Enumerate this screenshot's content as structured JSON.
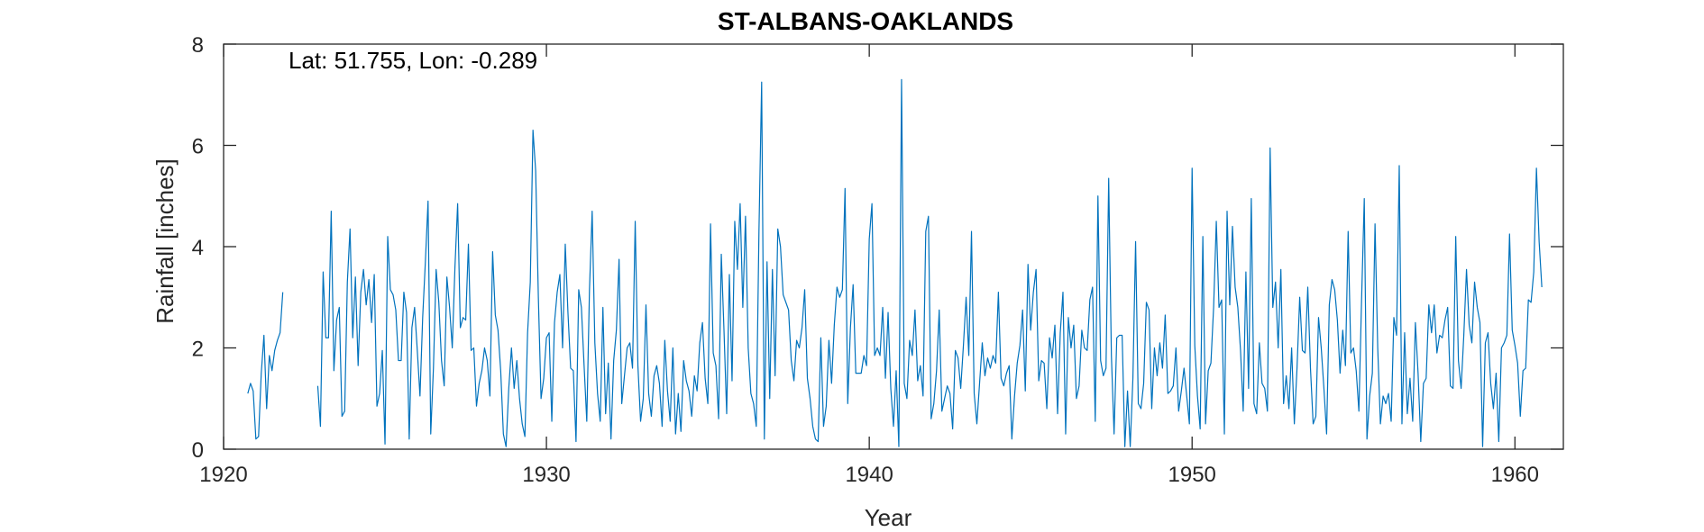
{
  "chart_data": {
    "type": "line",
    "title": "ST-ALBANS-OAKLANDS",
    "annotation": "Lat: 51.755, Lon: -0.289",
    "xlabel": "Year",
    "ylabel": "Rainfall [inches]",
    "xlim": [
      1920,
      1961.5
    ],
    "ylim": [
      0,
      8
    ],
    "xticks": [
      1920,
      1930,
      1940,
      1950,
      1960
    ],
    "yticks": [
      0,
      2,
      4,
      6,
      8
    ],
    "grid": false,
    "line_color": "#0072BD",
    "series": [
      {
        "segments": [
          {
            "start": [
              1920,
              10
            ],
            "values": [
              1.1,
              1.3,
              1.15,
              0.2,
              0.25,
              1.5,
              2.25,
              0.8,
              1.85,
              1.55,
              1.95,
              2.15,
              2.3,
              3.1
            ]
          },
          {
            "start": [
              1922,
              12
            ],
            "values": [
              1.25,
              0.45,
              3.5,
              2.2,
              2.2,
              4.7,
              1.55,
              2.55,
              2.8,
              0.65,
              0.75,
              3.3,
              4.35,
              2.2,
              3.4,
              1.65,
              3.1,
              3.55,
              2.85,
              3.35,
              2.5,
              3.45,
              0.85,
              1.1,
              1.95,
              0.1,
              4.2,
              3.15,
              3.05,
              2.75,
              1.75,
              1.75,
              3.1,
              2.7,
              0.2,
              2.4,
              2.8,
              1.95,
              1.05,
              2.6,
              3.7,
              4.9,
              0.3,
              1.6,
              3.55,
              2.9,
              1.75,
              1.25,
              3.4,
              2.8,
              2.0,
              3.6,
              4.85,
              2.4,
              2.6,
              2.55,
              4.05,
              1.95,
              2.0,
              0.85,
              1.3,
              1.55,
              2.0,
              1.75,
              1.05,
              3.9,
              2.65,
              2.35,
              1.55,
              0.3,
              0.05,
              1.2,
              2.0,
              1.2,
              1.75,
              1.0,
              0.5,
              0.25,
              2.3,
              3.3,
              6.3,
              5.5,
              3.0,
              1.0,
              1.4,
              2.2,
              2.3,
              0.55,
              2.5,
              3.1,
              3.45,
              2.0,
              4.05,
              2.7,
              1.6,
              1.55,
              0.15,
              3.15,
              2.8,
              1.65,
              0.55,
              3.15,
              4.7,
              2.1,
              1.1,
              0.55,
              2.8,
              0.7,
              1.7,
              0.2,
              1.75,
              2.35,
              3.75,
              0.9,
              1.45,
              2.0,
              2.1,
              1.6,
              4.5,
              1.65,
              0.55,
              1.0,
              2.85,
              1.1,
              0.65,
              1.45,
              1.65,
              1.3,
              0.45,
              2.15,
              1.15,
              0.55,
              2.0,
              0.3,
              1.1,
              0.35,
              1.75,
              1.35,
              1.15,
              0.65,
              1.45,
              1.15,
              2.1,
              2.5,
              1.4,
              0.9,
              4.45,
              1.9,
              1.65,
              0.6,
              3.85,
              2.35,
              0.7,
              3.45,
              1.35,
              4.5,
              3.55,
              4.85,
              2.8,
              4.6,
              2.0,
              1.1,
              0.9,
              0.45,
              4.3,
              7.25,
              0.2,
              3.7,
              1.0,
              3.55,
              1.45,
              4.35,
              4.0,
              3.05,
              2.9,
              2.75,
              1.75,
              1.35,
              2.15,
              2.0,
              2.4,
              3.15,
              1.4,
              1.0,
              0.45,
              0.2,
              0.15,
              2.2,
              0.45,
              0.85,
              2.15,
              1.3,
              2.45,
              3.2,
              3.0,
              3.15,
              5.15,
              0.9,
              2.4,
              3.25,
              1.5,
              1.5,
              1.5,
              1.85,
              1.65,
              4.15,
              4.85,
              1.85,
              2.0,
              1.85,
              2.8,
              1.4,
              2.7,
              1.2,
              0.45,
              1.55,
              0.05,
              7.3,
              1.3,
              1.0,
              2.15,
              1.85,
              2.75,
              1.35,
              1.65,
              1.05,
              4.3,
              4.6,
              0.6,
              0.9,
              1.55,
              2.75,
              0.75,
              1.0,
              1.25,
              1.1,
              0.4,
              1.95,
              1.8,
              1.2,
              2.05,
              3.0,
              1.85,
              4.3,
              1.1,
              0.5,
              1.3,
              2.1,
              1.45,
              1.8,
              1.6,
              1.85,
              1.7,
              3.1,
              1.4,
              1.25,
              1.5,
              1.65,
              0.2,
              1.05,
              1.7,
              2.05,
              2.75,
              1.15,
              3.65,
              2.35,
              3.1,
              3.55,
              1.35,
              1.75,
              1.7,
              0.8,
              2.2,
              1.8,
              2.45,
              0.7,
              2.3,
              3.1,
              0.3,
              2.6,
              2.0,
              2.45,
              1.0,
              1.25,
              2.35,
              2.0,
              1.95,
              2.95,
              3.2,
              0.55,
              5.0,
              1.75,
              1.45,
              1.6,
              5.35,
              1.85,
              0.3,
              2.2,
              2.25,
              2.25,
              0.05,
              1.15,
              0.05,
              1.4,
              4.1,
              0.9,
              0.8,
              1.3,
              2.9,
              2.75,
              0.8,
              2.0,
              1.45,
              2.1,
              1.6,
              2.65,
              1.1,
              1.15,
              1.25,
              2.0,
              0.75,
              1.15,
              1.6,
              1.05,
              0.5,
              5.55,
              2.05,
              1.05,
              0.4,
              4.2,
              0.5,
              1.55,
              1.7,
              2.8,
              4.5,
              2.8,
              2.95,
              0.3,
              4.7,
              2.85,
              4.4,
              3.2,
              2.8,
              1.95,
              0.75,
              3.5,
              1.2,
              4.95,
              0.9,
              0.7,
              2.1,
              1.3,
              1.2,
              0.75,
              5.95,
              2.8,
              3.3,
              2.0,
              3.55,
              0.9,
              1.45,
              0.8,
              2.0,
              0.5,
              1.6,
              3.0,
              1.95,
              1.9,
              3.2,
              1.6,
              0.5,
              0.65,
              2.6,
              2.0,
              1.2,
              0.3,
              2.85,
              3.35,
              3.15,
              2.55,
              1.5,
              2.35,
              1.65,
              4.3,
              1.9,
              2.0,
              1.55,
              0.75,
              2.95,
              4.95,
              0.2,
              1.05,
              1.5,
              4.45,
              2.0,
              0.5,
              1.05,
              0.9,
              1.1,
              0.55,
              2.6,
              2.25,
              5.6,
              0.5,
              2.3,
              0.7,
              1.4,
              0.55,
              2.5,
              1.5,
              0.15,
              1.3,
              1.4,
              2.85,
              2.3,
              2.85,
              1.9,
              2.25,
              2.2,
              2.55,
              2.8,
              1.25,
              1.2,
              4.2,
              1.75,
              1.2,
              2.25,
              3.55,
              2.45,
              2.1,
              3.3,
              2.8,
              2.5,
              0.05,
              2.1,
              2.3,
              1.3,
              0.8,
              1.5,
              0.15,
              2.0,
              2.1,
              2.25,
              4.25,
              2.35,
              2.05,
              1.7,
              0.65,
              1.55,
              1.6,
              2.95,
              2.9,
              3.5,
              5.55,
              4.1,
              3.2
            ]
          }
        ]
      }
    ]
  }
}
